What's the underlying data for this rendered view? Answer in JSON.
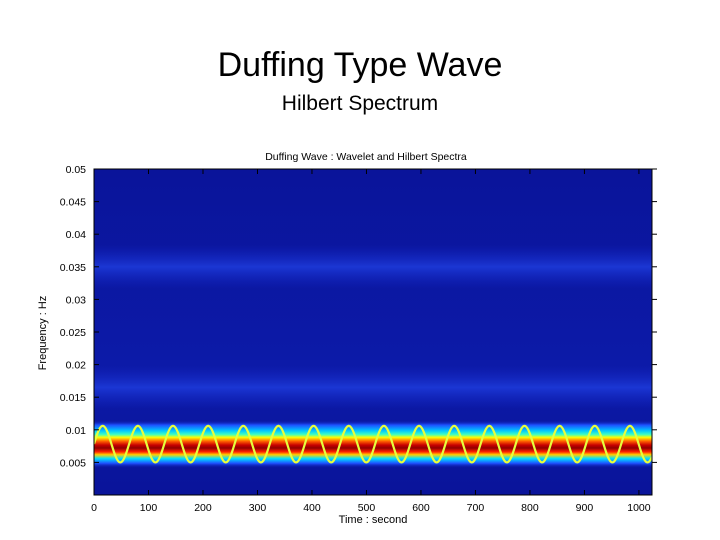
{
  "slide": {
    "title": "Duffing Type Wave",
    "subtitle": "Hilbert Spectrum"
  },
  "chart_data": {
    "type": "heatmap",
    "title": "Duffing Wave : Wavelet and Hilbert Spectra",
    "xlabel": "Time : second",
    "ylabel": "Frequency : Hz",
    "xlim": [
      0,
      1024
    ],
    "ylim": [
      0,
      0.05
    ],
    "x_ticks": [
      0,
      100,
      200,
      300,
      400,
      500,
      600,
      700,
      800,
      900,
      1000
    ],
    "x_tick_labels": [
      "0",
      "100",
      "200",
      "300",
      "400",
      "500",
      "600",
      "700",
      "800",
      "900",
      "1000"
    ],
    "y_ticks": [
      0.005,
      0.01,
      0.015,
      0.02,
      0.025,
      0.03,
      0.035,
      0.04,
      0.045,
      0.05
    ],
    "y_tick_labels": [
      "0.005",
      "0.01",
      "0.015",
      "0.02",
      "0.025",
      "0.03",
      "0.035",
      "0.04",
      "0.045",
      "0.05"
    ],
    "colormap": "jet",
    "background_color": "#0a14a0",
    "band_center_hz": 0.0078,
    "band_colors": [
      "#0a14a0",
      "#1e64ff",
      "#00e6ff",
      "#ffff00",
      "#ff3c00",
      "#b40000",
      "#8c0000"
    ],
    "secondary_bands_hz": [
      0.0165,
      0.035
    ],
    "hilbert_line": {
      "color": "#e6ff3c",
      "center_hz": 0.0078,
      "amplitude_hz": 0.0028,
      "period_s": 64.5,
      "phase_offset_s": 16
    },
    "grid": false,
    "legend": "none"
  }
}
